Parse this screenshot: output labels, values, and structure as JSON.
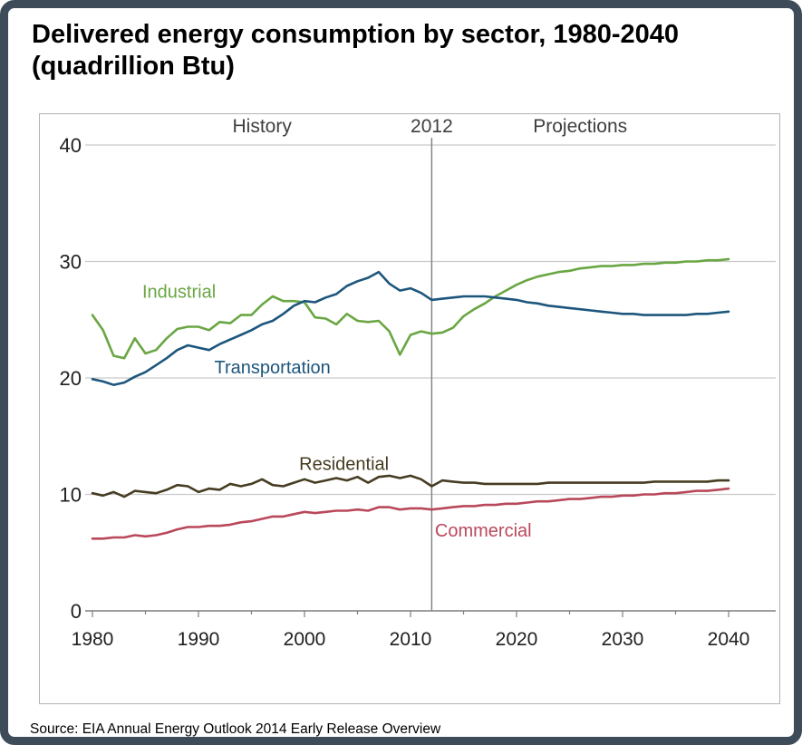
{
  "title": {
    "line1": "Delivered energy consumption by sector, 1980-2040",
    "line2": "(quadrillion Btu)"
  },
  "source": "Source: EIA Annual Energy Outlook 2014 Early Release Overview",
  "chart_data": {
    "type": "line",
    "title": "Delivered energy consumption by sector, 1980-2040 (quadrillion Btu)",
    "xlabel": "",
    "ylabel": "quadrillion Btu",
    "x_range": [
      1980,
      2040
    ],
    "y_range": [
      0,
      40
    ],
    "x_ticks": [
      1980,
      1990,
      2000,
      2010,
      2020,
      2030,
      2040
    ],
    "y_ticks": [
      0,
      10,
      20,
      30,
      40
    ],
    "grid": "horizontal",
    "legend": "inline-labels",
    "divider": {
      "x": 2012,
      "labels": {
        "left": "History",
        "center": "2012",
        "right": "Projections"
      },
      "label_color": "#3f3f3f"
    },
    "axis_color": "#7f7f7f",
    "gridline_color": "#c9c9c9",
    "years": [
      1980,
      1981,
      1982,
      1983,
      1984,
      1985,
      1986,
      1987,
      1988,
      1989,
      1990,
      1991,
      1992,
      1993,
      1994,
      1995,
      1996,
      1997,
      1998,
      1999,
      2000,
      2001,
      2002,
      2003,
      2004,
      2005,
      2006,
      2007,
      2008,
      2009,
      2010,
      2011,
      2012,
      2013,
      2014,
      2015,
      2016,
      2017,
      2018,
      2019,
      2020,
      2021,
      2022,
      2023,
      2024,
      2025,
      2026,
      2027,
      2028,
      2029,
      2030,
      2031,
      2032,
      2033,
      2034,
      2035,
      2036,
      2037,
      2038,
      2039,
      2040
    ],
    "series": [
      {
        "name": "Industrial",
        "color": "#6aa643",
        "label_pos": {
          "year": 1984.7,
          "value": 26.9
        },
        "values": [
          25.4,
          24.1,
          21.9,
          21.7,
          23.4,
          22.1,
          22.4,
          23.4,
          24.2,
          24.4,
          24.4,
          24.1,
          24.8,
          24.7,
          25.4,
          25.4,
          26.3,
          27.0,
          26.6,
          26.6,
          26.5,
          25.2,
          25.1,
          24.6,
          25.5,
          24.9,
          24.8,
          24.9,
          24.0,
          22.0,
          23.7,
          24.0,
          23.8,
          23.9,
          24.3,
          25.3,
          25.9,
          26.4,
          27.0,
          27.5,
          28.0,
          28.4,
          28.7,
          28.9,
          29.1,
          29.2,
          29.4,
          29.5,
          29.6,
          29.6,
          29.7,
          29.7,
          29.8,
          29.8,
          29.9,
          29.9,
          30.0,
          30.0,
          30.1,
          30.1,
          30.2
        ]
      },
      {
        "name": "Transportation",
        "color": "#1d567c",
        "label_pos": {
          "year": 1991.5,
          "value": 20.4
        },
        "values": [
          19.9,
          19.7,
          19.4,
          19.6,
          20.1,
          20.5,
          21.1,
          21.7,
          22.4,
          22.8,
          22.6,
          22.4,
          22.9,
          23.3,
          23.7,
          24.1,
          24.6,
          24.9,
          25.5,
          26.2,
          26.6,
          26.5,
          26.9,
          27.2,
          27.9,
          28.3,
          28.6,
          29.1,
          28.1,
          27.5,
          27.7,
          27.3,
          26.7,
          26.8,
          26.9,
          27.0,
          27.0,
          27.0,
          26.9,
          26.8,
          26.7,
          26.5,
          26.4,
          26.2,
          26.1,
          26.0,
          25.9,
          25.8,
          25.7,
          25.6,
          25.5,
          25.5,
          25.4,
          25.4,
          25.4,
          25.4,
          25.4,
          25.5,
          25.5,
          25.6,
          25.7
        ]
      },
      {
        "name": "Residential",
        "color": "#463c22",
        "label_pos": {
          "year": 1999.5,
          "value": 12.1
        },
        "values": [
          10.1,
          9.9,
          10.2,
          9.8,
          10.3,
          10.2,
          10.1,
          10.4,
          10.8,
          10.7,
          10.2,
          10.5,
          10.4,
          10.9,
          10.7,
          10.9,
          11.3,
          10.8,
          10.7,
          11.0,
          11.3,
          11.0,
          11.2,
          11.4,
          11.2,
          11.5,
          11.0,
          11.5,
          11.6,
          11.4,
          11.6,
          11.3,
          10.7,
          11.2,
          11.1,
          11.0,
          11.0,
          10.9,
          10.9,
          10.9,
          10.9,
          10.9,
          10.9,
          11.0,
          11.0,
          11.0,
          11.0,
          11.0,
          11.0,
          11.0,
          11.0,
          11.0,
          11.0,
          11.1,
          11.1,
          11.1,
          11.1,
          11.1,
          11.1,
          11.2,
          11.2
        ]
      },
      {
        "name": "Commercial",
        "color": "#b9485a",
        "label_pos": {
          "year": 2012.3,
          "value": 6.4
        },
        "values": [
          6.2,
          6.2,
          6.3,
          6.3,
          6.5,
          6.4,
          6.5,
          6.7,
          7.0,
          7.2,
          7.2,
          7.3,
          7.3,
          7.4,
          7.6,
          7.7,
          7.9,
          8.1,
          8.1,
          8.3,
          8.5,
          8.4,
          8.5,
          8.6,
          8.6,
          8.7,
          8.6,
          8.9,
          8.9,
          8.7,
          8.8,
          8.8,
          8.7,
          8.8,
          8.9,
          9.0,
          9.0,
          9.1,
          9.1,
          9.2,
          9.2,
          9.3,
          9.4,
          9.4,
          9.5,
          9.6,
          9.6,
          9.7,
          9.8,
          9.8,
          9.9,
          9.9,
          10.0,
          10.0,
          10.1,
          10.1,
          10.2,
          10.3,
          10.3,
          10.4,
          10.5
        ]
      }
    ]
  }
}
